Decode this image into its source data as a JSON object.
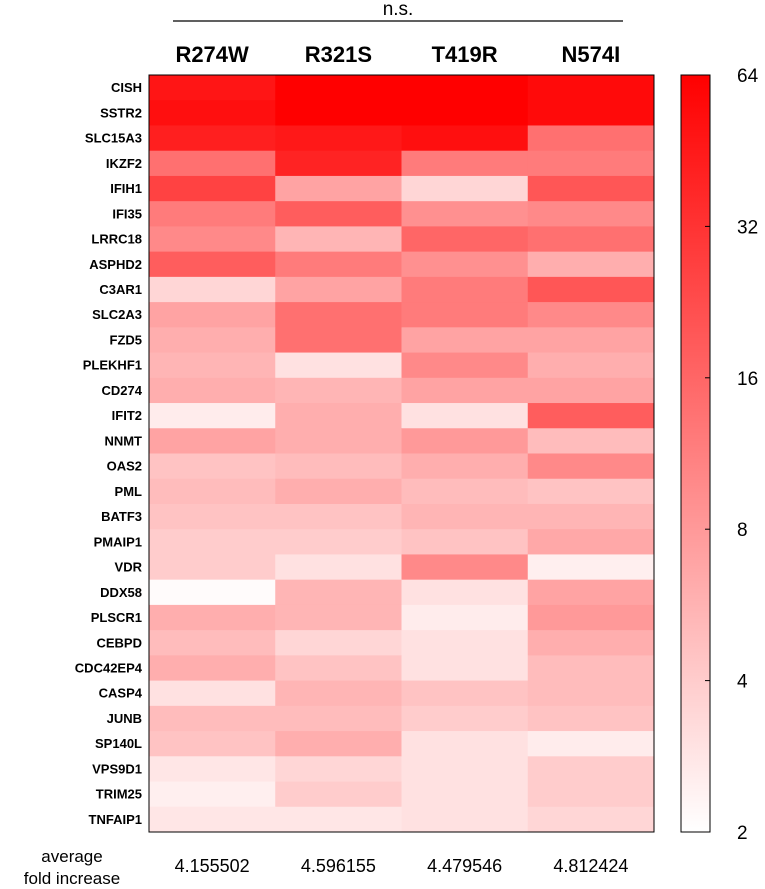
{
  "chart_data": {
    "type": "heatmap",
    "significance_label": "n.s.",
    "columns": [
      "R274W",
      "R321S",
      "T419R",
      "N574I"
    ],
    "rows": [
      "CISH",
      "SSTR2",
      "SLC15A3",
      "IKZF2",
      "IFIH1",
      "IFI35",
      "LRRC18",
      "ASPHD2",
      "C3AR1",
      "SLC2A3",
      "FZD5",
      "PLEKHF1",
      "CD274",
      "IFIT2",
      "NNMT",
      "OAS2",
      "PML",
      "BATF3",
      "PMAIP1",
      "VDR",
      "DDX58",
      "PLSCR1",
      "CEBPD",
      "CDC42EP4",
      "CASP4",
      "JUNB",
      "SP140L",
      "VPS9D1",
      "TRIM25",
      "TNFAIP1"
    ],
    "values": [
      [
        48,
        64,
        70,
        56
      ],
      [
        52,
        70,
        64,
        56
      ],
      [
        42,
        46,
        52,
        14
      ],
      [
        14,
        40,
        12,
        12
      ],
      [
        26,
        7,
        3.5,
        20
      ],
      [
        12,
        18,
        9,
        10
      ],
      [
        10,
        5.5,
        16,
        14
      ],
      [
        18,
        12,
        9,
        6
      ],
      [
        3.5,
        7,
        12,
        20
      ],
      [
        7,
        14,
        12,
        10
      ],
      [
        6,
        14,
        7,
        7
      ],
      [
        5.5,
        3,
        10,
        6
      ],
      [
        6,
        5.5,
        7,
        7
      ],
      [
        2.6,
        6,
        3,
        18
      ],
      [
        7,
        6,
        8,
        5
      ],
      [
        4.5,
        5,
        6,
        10
      ],
      [
        5,
        6,
        5,
        4.5
      ],
      [
        4.5,
        4.5,
        5.5,
        5.5
      ],
      [
        4,
        4,
        4.5,
        6.5
      ],
      [
        4,
        3,
        10,
        2.5
      ],
      [
        2.1,
        5.5,
        3,
        7
      ],
      [
        6,
        5.5,
        2.6,
        8
      ],
      [
        5,
        3.5,
        3,
        6
      ],
      [
        6,
        4.5,
        3,
        5
      ],
      [
        3,
        5.5,
        4.5,
        5
      ],
      [
        5,
        5,
        4,
        4.5
      ],
      [
        4.5,
        6,
        3,
        2.6
      ],
      [
        2.8,
        3.5,
        3,
        4
      ],
      [
        2.5,
        4,
        3,
        4
      ],
      [
        2.8,
        2.8,
        3,
        3.5
      ]
    ],
    "colorbar": {
      "ticks": [
        64,
        32,
        16,
        8,
        4,
        2
      ],
      "min": 2,
      "max": 64,
      "scale": "log2",
      "low_color": "#ffffff",
      "high_color": "#ff0000"
    },
    "footer": {
      "label_line1": "average",
      "label_line2": "fold increase",
      "averages": [
        "4.155502",
        "4.596155",
        "4.479546",
        "4.812424"
      ]
    }
  }
}
